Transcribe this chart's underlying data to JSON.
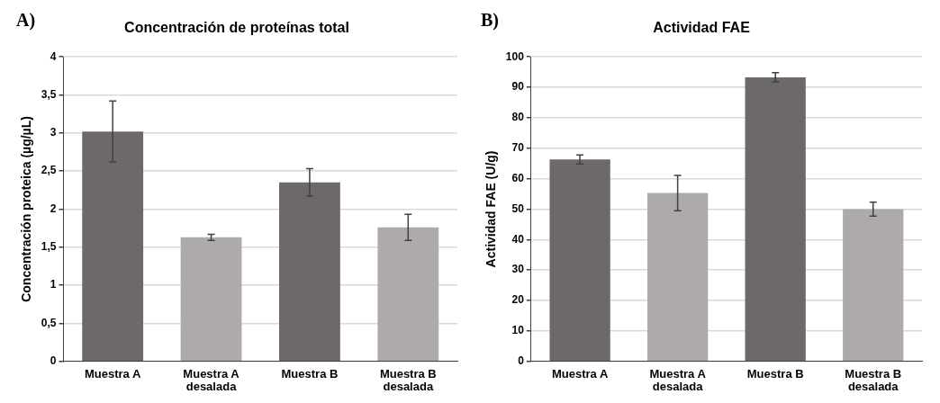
{
  "chart_data": [
    {
      "type": "bar",
      "title": "Concentración de proteínas total",
      "ylabel": "Concentración proteica (µg/µL)",
      "annotations": [
        "A)"
      ],
      "categories": [
        "Muestra A",
        "Muestra A desalada",
        "Muestra B",
        "Muestra B desalada"
      ],
      "values": [
        3.02,
        1.63,
        2.35,
        1.76
      ],
      "errors": [
        0.4,
        0.04,
        0.18,
        0.17
      ],
      "colors": [
        "#6d6968",
        "#aeaaa9",
        "#6d6968",
        "#aeaaa9"
      ],
      "ylim": [
        0,
        4
      ],
      "yticks": [
        0,
        {
          "value": 0.5,
          "label": "0,5"
        },
        1,
        {
          "value": 1.5,
          "label": "1,5"
        },
        2,
        {
          "value": 2.5,
          "label": "2,5"
        },
        3,
        {
          "value": 3.5,
          "label": "3,5"
        },
        4
      ],
      "grid": "y"
    },
    {
      "type": "bar",
      "title": "Actividad FAE",
      "ylabel": "Actividad FAE (U/g)",
      "annotations": [
        "B)"
      ],
      "categories": [
        "Muestra A",
        "Muestra A desalada",
        "Muestra B",
        "Muestra B desalada"
      ],
      "values": [
        66.3,
        55.3,
        93.3,
        50
      ],
      "errors": [
        1.5,
        5.8,
        1.5,
        2.3
      ],
      "colors": [
        "#6d6968",
        "#aeaaa9",
        "#6d6968",
        "#aeaaa9"
      ],
      "ylim": [
        0,
        100
      ],
      "yticks": [
        0,
        10,
        20,
        30,
        40,
        50,
        60,
        70,
        80,
        90,
        100
      ],
      "grid": "y"
    }
  ]
}
